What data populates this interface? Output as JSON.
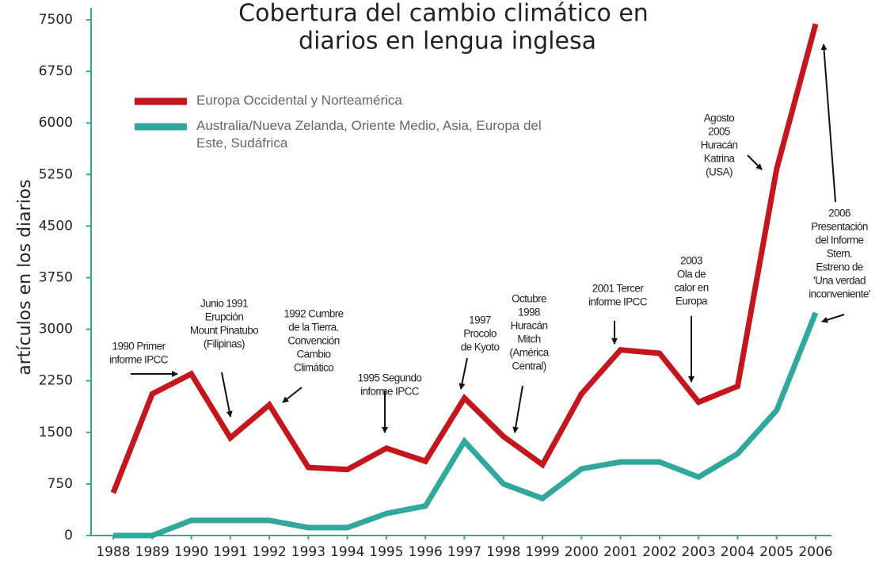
{
  "chart_data": {
    "type": "line",
    "title": [
      "Cobertura del cambio climático en",
      "diarios en lengua inglesa"
    ],
    "y_label": "artículos en los diarios",
    "categories": [
      "1988",
      "1989",
      "1990",
      "1991",
      "1992",
      "1993",
      "1994",
      "1995",
      "1996",
      "1997",
      "1998",
      "1999",
      "2000",
      "2001",
      "2002",
      "2003",
      "2004",
      "2005",
      "2006"
    ],
    "series": [
      {
        "name": "Europa Occidental y Norteamérica",
        "color": "#c4161c",
        "values": [
          620,
          2060,
          2350,
          1420,
          1900,
          990,
          960,
          1270,
          1080,
          2000,
          1440,
          1030,
          2060,
          2700,
          2650,
          1940,
          2170,
          5330,
          7440
        ]
      },
      {
        "name": "Australia/Nueva Zelanda, Oriente Medio, Asia, Europa del Este, Sudáfrica",
        "color": "#30a89b",
        "values": [
          0,
          0,
          220,
          220,
          220,
          115,
          115,
          320,
          430,
          1370,
          750,
          540,
          970,
          1070,
          1070,
          850,
          1190,
          1820,
          3240
        ]
      }
    ],
    "ylim": [
      0,
      7500
    ],
    "yticks": [
      0,
      750,
      1500,
      2250,
      3000,
      3750,
      4500,
      5250,
      6000,
      6750,
      7500
    ],
    "annotations": [
      [
        "1990 Primer",
        "informe IPCC"
      ],
      [
        "Junio 1991",
        "Erupción",
        "Mount Pinatubo",
        "(Filipinas)"
      ],
      [
        "1992 Cumbre",
        "de la Tierra.",
        "Convención",
        "Cambio",
        "Climático"
      ],
      [
        "1995 Segundo",
        "informe IPCC"
      ],
      [
        "1997",
        "Procolo",
        "de Kyoto"
      ],
      [
        "Octubre",
        "1998",
        "Huracán",
        "Mitch",
        "(América",
        "Central)"
      ],
      [
        "2001 Tercer",
        "informe IPCC"
      ],
      [
        "2003",
        "Ola de",
        "calor en",
        "Europa"
      ],
      [
        "Agosto",
        "2005",
        "Huracán",
        "Katrina",
        "(USA)"
      ],
      [
        "2006",
        "Presentación",
        "del Informe",
        "Stern.",
        "Estreno de",
        "'Una verdad",
        "inconveniente'"
      ]
    ]
  }
}
